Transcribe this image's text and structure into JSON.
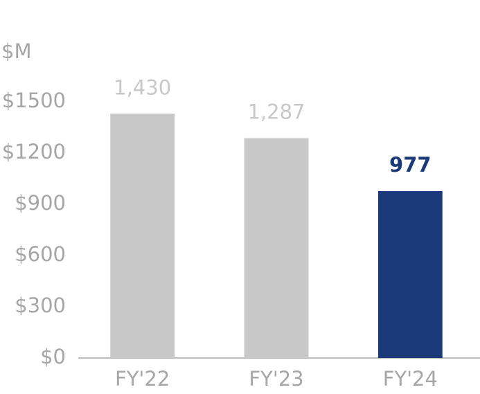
{
  "chart_data": {
    "type": "bar",
    "y_axis_label": "$M",
    "categories": [
      "FY'22",
      "FY'23",
      "FY'24"
    ],
    "values": [
      1430,
      1287,
      977
    ],
    "value_labels": [
      "1,430",
      "1,287",
      "977"
    ],
    "colors": [
      "#c8c8c8",
      "#c8c8c8",
      "#1a3a7a"
    ],
    "ylim": [
      0,
      1500
    ],
    "yticks": [
      {
        "value": 0,
        "label": "$0"
      },
      {
        "value": 300,
        "label": "$300"
      },
      {
        "value": 600,
        "label": "$600"
      },
      {
        "value": 900,
        "label": "$900"
      },
      {
        "value": 1200,
        "label": "$1200"
      },
      {
        "value": 1500,
        "label": "$1500"
      }
    ],
    "grid": false
  }
}
